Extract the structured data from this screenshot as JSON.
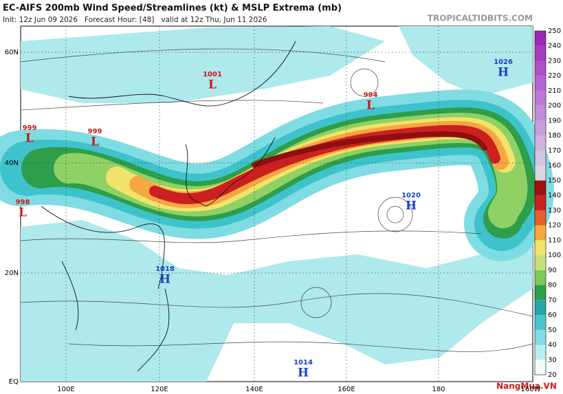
{
  "header": {
    "title": "EC-AIFS 200mb Wind Speed/Streamlines (kt) & MSLP Extrema (mb)",
    "subtitle": "Init: 12z Jun 09 2026   Forecast Hour: [48]   valid at 12z Thu, Jun 11 2026",
    "site": "TROPICALTIDBITS.COM"
  },
  "axes": {
    "lat_labels": [
      "60N",
      "40N",
      "20N",
      "EQ"
    ],
    "lon_labels": [
      "100E",
      "120E",
      "140E",
      "160E",
      "180",
      "160W"
    ]
  },
  "pressure_centers": [
    {
      "value": "999",
      "type": "L"
    },
    {
      "value": "999",
      "type": "L"
    },
    {
      "value": "998",
      "type": "L"
    },
    {
      "value": "1001",
      "type": "L"
    },
    {
      "value": "994",
      "type": "L"
    },
    {
      "value": "1026",
      "type": "H"
    },
    {
      "value": "1020",
      "type": "H"
    },
    {
      "value": "1018",
      "type": "H"
    },
    {
      "value": "1014",
      "type": "H"
    }
  ],
  "colorbar": {
    "labels": [
      "20",
      "30",
      "40",
      "50",
      "60",
      "70",
      "80",
      "90",
      "100",
      "110",
      "120",
      "130",
      "140",
      "150",
      "160",
      "170",
      "180",
      "190",
      "200",
      "210",
      "220",
      "230",
      "240",
      "250"
    ],
    "colors": [
      "#f4fbfb",
      "#b9eef0",
      "#82dde3",
      "#48c7cf",
      "#2aa5a6",
      "#2e9e4a",
      "#7cc95c",
      "#c3e27a",
      "#f2e36a",
      "#f5a742",
      "#e8602b",
      "#cc2020",
      "#a01212",
      "#dcd6e0",
      "#d6c4e0",
      "#cfb2de",
      "#c89fdc",
      "#c28cd8",
      "#bc78d3",
      "#b564ce",
      "#ad50c8",
      "#a43cc0",
      "#9a28b6"
    ]
  },
  "watermark": "NangMua.VN"
}
